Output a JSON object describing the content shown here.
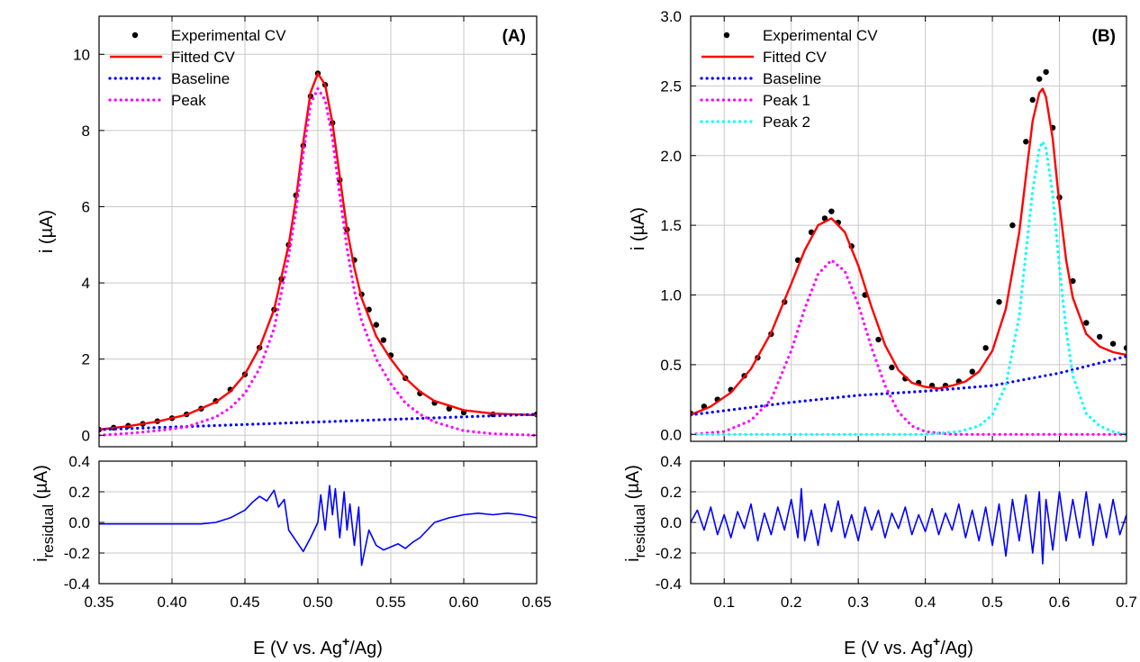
{
  "chart_data": [
    {
      "panel_label": "(A)",
      "type": "line",
      "xlabel": "E (V vs. Ag",
      "xlabel_sup": "+",
      "xlabel_tail": "/Ag)",
      "xlim": [
        0.35,
        0.65
      ],
      "xticks": [
        "0.35",
        "0.40",
        "0.45",
        "0.50",
        "0.55",
        "0.60",
        "0.65"
      ],
      "grid": true,
      "top": {
        "ylabel": "i (µA)",
        "ylim": [
          -0.3,
          11.0
        ],
        "yticks": [
          "0",
          "2",
          "4",
          "6",
          "8",
          "10"
        ],
        "legend_position": "top-left",
        "series": [
          {
            "name": "Experimental CV",
            "style": "points",
            "color": "#000000",
            "x": [
              0.35,
              0.36,
              0.37,
              0.38,
              0.39,
              0.4,
              0.41,
              0.42,
              0.43,
              0.44,
              0.45,
              0.46,
              0.47,
              0.475,
              0.48,
              0.485,
              0.49,
              0.495,
              0.5,
              0.505,
              0.51,
              0.515,
              0.52,
              0.525,
              0.53,
              0.535,
              0.54,
              0.545,
              0.55,
              0.56,
              0.57,
              0.58,
              0.59,
              0.6,
              0.62,
              0.65
            ],
            "y": [
              0.15,
              0.2,
              0.25,
              0.3,
              0.37,
              0.45,
              0.55,
              0.7,
              0.9,
              1.2,
              1.6,
              2.3,
              3.3,
              4.1,
              5.0,
              6.3,
              7.6,
              8.9,
              9.5,
              9.2,
              8.2,
              6.7,
              5.4,
              4.6,
              3.7,
              3.3,
              2.9,
              2.5,
              2.1,
              1.5,
              1.1,
              0.85,
              0.7,
              0.6,
              0.55,
              0.55
            ]
          },
          {
            "name": "Fitted CV",
            "style": "line",
            "color": "#ff0000",
            "x": [
              0.35,
              0.37,
              0.39,
              0.41,
              0.43,
              0.44,
              0.45,
              0.46,
              0.47,
              0.48,
              0.485,
              0.49,
              0.495,
              0.5,
              0.505,
              0.51,
              0.515,
              0.52,
              0.525,
              0.53,
              0.54,
              0.55,
              0.56,
              0.57,
              0.58,
              0.6,
              0.62,
              0.65
            ],
            "y": [
              0.15,
              0.24,
              0.36,
              0.54,
              0.87,
              1.15,
              1.6,
              2.3,
              3.3,
              5.0,
              6.2,
              7.7,
              9.0,
              9.5,
              9.2,
              8.2,
              6.8,
              5.4,
              4.4,
              3.6,
              2.6,
              2.0,
              1.5,
              1.15,
              0.9,
              0.66,
              0.57,
              0.53
            ]
          },
          {
            "name": "Baseline",
            "style": "dotted",
            "color": "#0000ff",
            "x": [
              0.35,
              0.65
            ],
            "y": [
              0.15,
              0.55
            ]
          },
          {
            "name": "Peak",
            "style": "dotted",
            "color": "#ff00ff",
            "x": [
              0.35,
              0.37,
              0.39,
              0.41,
              0.43,
              0.44,
              0.45,
              0.46,
              0.47,
              0.48,
              0.485,
              0.49,
              0.495,
              0.5,
              0.505,
              0.51,
              0.515,
              0.52,
              0.525,
              0.53,
              0.54,
              0.55,
              0.56,
              0.57,
              0.58,
              0.6,
              0.62,
              0.65
            ],
            "y": [
              0.0,
              0.05,
              0.12,
              0.22,
              0.48,
              0.72,
              1.1,
              1.75,
              2.8,
              4.7,
              5.9,
              7.4,
              8.7,
              9.1,
              8.8,
              7.8,
              6.3,
              4.9,
              3.8,
              3.0,
              2.0,
              1.35,
              0.85,
              0.55,
              0.35,
              0.12,
              0.04,
              0.0
            ]
          }
        ]
      },
      "bottom": {
        "ylabel": "i",
        "ylabel_sub": "residual",
        "ylabel_tail": " (µA)",
        "ylim": [
          -0.4,
          0.4
        ],
        "yticks": [
          "-0.4",
          "-0.2",
          "0.0",
          "0.2",
          "0.4"
        ],
        "series": [
          {
            "name": "",
            "style": "line",
            "color": "#0000ff",
            "x": [
              0.35,
              0.36,
              0.38,
              0.4,
              0.42,
              0.43,
              0.44,
              0.45,
              0.455,
              0.46,
              0.465,
              0.47,
              0.473,
              0.477,
              0.48,
              0.485,
              0.49,
              0.495,
              0.5,
              0.502,
              0.505,
              0.508,
              0.51,
              0.512,
              0.515,
              0.518,
              0.52,
              0.522,
              0.525,
              0.528,
              0.53,
              0.535,
              0.54,
              0.545,
              0.55,
              0.555,
              0.56,
              0.565,
              0.57,
              0.575,
              0.58,
              0.59,
              0.6,
              0.61,
              0.62,
              0.63,
              0.64,
              0.65
            ],
            "y": [
              -0.01,
              -0.01,
              -0.01,
              -0.01,
              -0.01,
              0.0,
              0.03,
              0.08,
              0.13,
              0.17,
              0.14,
              0.21,
              0.1,
              0.15,
              -0.05,
              -0.12,
              -0.19,
              -0.1,
              0.0,
              0.18,
              -0.05,
              0.24,
              0.05,
              0.22,
              -0.1,
              0.2,
              -0.05,
              0.12,
              -0.15,
              0.1,
              -0.28,
              -0.05,
              -0.15,
              -0.18,
              -0.16,
              -0.14,
              -0.17,
              -0.13,
              -0.1,
              -0.05,
              0.0,
              0.03,
              0.05,
              0.06,
              0.05,
              0.06,
              0.05,
              0.03
            ]
          }
        ]
      }
    },
    {
      "panel_label": "(B)",
      "type": "line",
      "xlabel": "E (V vs. Ag",
      "xlabel_sup": "+",
      "xlabel_tail": "/Ag)",
      "xlim": [
        0.05,
        0.7
      ],
      "xticks": [
        "0.1",
        "0.2",
        "0.3",
        "0.4",
        "0.5",
        "0.6",
        "0.7"
      ],
      "grid": true,
      "top": {
        "ylabel": "i (µA)",
        "ylim": [
          -0.05,
          3.0
        ],
        "yticks": [
          "0.0",
          "0.5",
          "1.0",
          "1.5",
          "2.0",
          "2.5",
          "3.0"
        ],
        "legend_position": "top-left",
        "series": [
          {
            "name": "Experimental CV",
            "style": "points",
            "color": "#000000",
            "x": [
              0.05,
              0.07,
              0.09,
              0.11,
              0.13,
              0.15,
              0.17,
              0.19,
              0.21,
              0.23,
              0.25,
              0.26,
              0.27,
              0.29,
              0.31,
              0.33,
              0.35,
              0.37,
              0.39,
              0.41,
              0.43,
              0.45,
              0.47,
              0.49,
              0.51,
              0.53,
              0.55,
              0.56,
              0.57,
              0.58,
              0.59,
              0.6,
              0.62,
              0.64,
              0.66,
              0.68,
              0.7
            ],
            "y": [
              0.15,
              0.2,
              0.25,
              0.32,
              0.42,
              0.55,
              0.72,
              0.95,
              1.25,
              1.45,
              1.55,
              1.6,
              1.52,
              1.35,
              1.0,
              0.68,
              0.48,
              0.4,
              0.37,
              0.35,
              0.35,
              0.38,
              0.45,
              0.62,
              0.95,
              1.5,
              2.1,
              2.4,
              2.55,
              2.6,
              2.2,
              1.7,
              1.1,
              0.8,
              0.7,
              0.65,
              0.62
            ]
          },
          {
            "name": "Fitted CV",
            "style": "line",
            "color": "#ff0000",
            "x": [
              0.05,
              0.08,
              0.11,
              0.14,
              0.17,
              0.2,
              0.22,
              0.24,
              0.26,
              0.28,
              0.3,
              0.32,
              0.34,
              0.36,
              0.38,
              0.4,
              0.42,
              0.44,
              0.46,
              0.48,
              0.5,
              0.52,
              0.54,
              0.55,
              0.56,
              0.57,
              0.575,
              0.58,
              0.59,
              0.6,
              0.61,
              0.62,
              0.64,
              0.66,
              0.68,
              0.7
            ],
            "y": [
              0.14,
              0.2,
              0.3,
              0.47,
              0.73,
              1.08,
              1.32,
              1.5,
              1.55,
              1.45,
              1.21,
              0.91,
              0.64,
              0.46,
              0.37,
              0.34,
              0.33,
              0.35,
              0.38,
              0.45,
              0.6,
              0.9,
              1.45,
              1.85,
              2.25,
              2.45,
              2.48,
              2.42,
              2.12,
              1.65,
              1.25,
              0.98,
              0.72,
              0.63,
              0.59,
              0.57
            ]
          },
          {
            "name": "Baseline",
            "style": "dotted",
            "color": "#0000ff",
            "x": [
              0.05,
              0.2,
              0.3,
              0.4,
              0.5,
              0.6,
              0.7
            ],
            "y": [
              0.14,
              0.23,
              0.28,
              0.31,
              0.35,
              0.44,
              0.56
            ]
          },
          {
            "name": "Peak 1",
            "style": "dotted",
            "color": "#ff00ff",
            "x": [
              0.05,
              0.1,
              0.14,
              0.17,
              0.2,
              0.22,
              0.24,
              0.26,
              0.28,
              0.3,
              0.32,
              0.34,
              0.36,
              0.38,
              0.4,
              0.44,
              0.5,
              0.7
            ],
            "y": [
              0.0,
              0.02,
              0.1,
              0.25,
              0.6,
              0.9,
              1.15,
              1.25,
              1.17,
              0.93,
              0.62,
              0.35,
              0.16,
              0.06,
              0.02,
              0.0,
              0.0,
              0.0
            ]
          },
          {
            "name": "Peak 2",
            "style": "dotted",
            "color": "#00ffff",
            "x": [
              0.05,
              0.4,
              0.45,
              0.48,
              0.5,
              0.52,
              0.54,
              0.55,
              0.56,
              0.57,
              0.575,
              0.58,
              0.59,
              0.6,
              0.61,
              0.62,
              0.64,
              0.66,
              0.68,
              0.7
            ],
            "y": [
              0.0,
              0.0,
              0.02,
              0.06,
              0.14,
              0.35,
              0.85,
              1.3,
              1.75,
              2.05,
              2.1,
              2.05,
              1.72,
              1.2,
              0.75,
              0.42,
              0.15,
              0.06,
              0.02,
              0.0
            ]
          }
        ]
      },
      "bottom": {
        "ylabel": "i",
        "ylabel_sub": "residual",
        "ylabel_tail": " (µA)",
        "ylim": [
          -0.4,
          0.4
        ],
        "yticks": [
          "-0.4",
          "-0.2",
          "0.0",
          "0.2",
          "0.4"
        ],
        "series": [
          {
            "name": "",
            "style": "line",
            "color": "#0000ff",
            "x": [
              0.05,
              0.06,
              0.07,
              0.08,
              0.09,
              0.1,
              0.11,
              0.12,
              0.13,
              0.14,
              0.15,
              0.16,
              0.17,
              0.18,
              0.19,
              0.2,
              0.21,
              0.215,
              0.22,
              0.23,
              0.24,
              0.25,
              0.26,
              0.27,
              0.28,
              0.29,
              0.3,
              0.31,
              0.32,
              0.33,
              0.34,
              0.35,
              0.36,
              0.37,
              0.38,
              0.39,
              0.4,
              0.41,
              0.42,
              0.43,
              0.44,
              0.45,
              0.46,
              0.47,
              0.48,
              0.49,
              0.5,
              0.51,
              0.52,
              0.53,
              0.54,
              0.55,
              0.56,
              0.57,
              0.575,
              0.58,
              0.59,
              0.6,
              0.61,
              0.62,
              0.63,
              0.64,
              0.65,
              0.66,
              0.67,
              0.68,
              0.69,
              0.7
            ],
            "y": [
              0.0,
              0.08,
              -0.05,
              0.1,
              -0.08,
              0.05,
              -0.1,
              0.07,
              -0.04,
              0.12,
              -0.12,
              0.06,
              -0.08,
              0.1,
              -0.05,
              0.15,
              -0.1,
              0.22,
              -0.12,
              0.08,
              -0.15,
              0.12,
              -0.06,
              0.14,
              -0.1,
              0.05,
              -0.12,
              0.1,
              -0.05,
              0.08,
              -0.1,
              0.06,
              -0.04,
              0.1,
              -0.08,
              0.05,
              -0.06,
              0.09,
              -0.08,
              0.06,
              -0.05,
              0.12,
              -0.1,
              0.08,
              -0.12,
              0.1,
              -0.15,
              0.12,
              -0.22,
              0.15,
              -0.12,
              0.18,
              -0.2,
              0.2,
              -0.27,
              0.15,
              -0.18,
              0.2,
              -0.12,
              0.15,
              -0.1,
              0.2,
              -0.15,
              0.12,
              -0.1,
              0.15,
              -0.08,
              0.05
            ]
          }
        ]
      }
    }
  ]
}
